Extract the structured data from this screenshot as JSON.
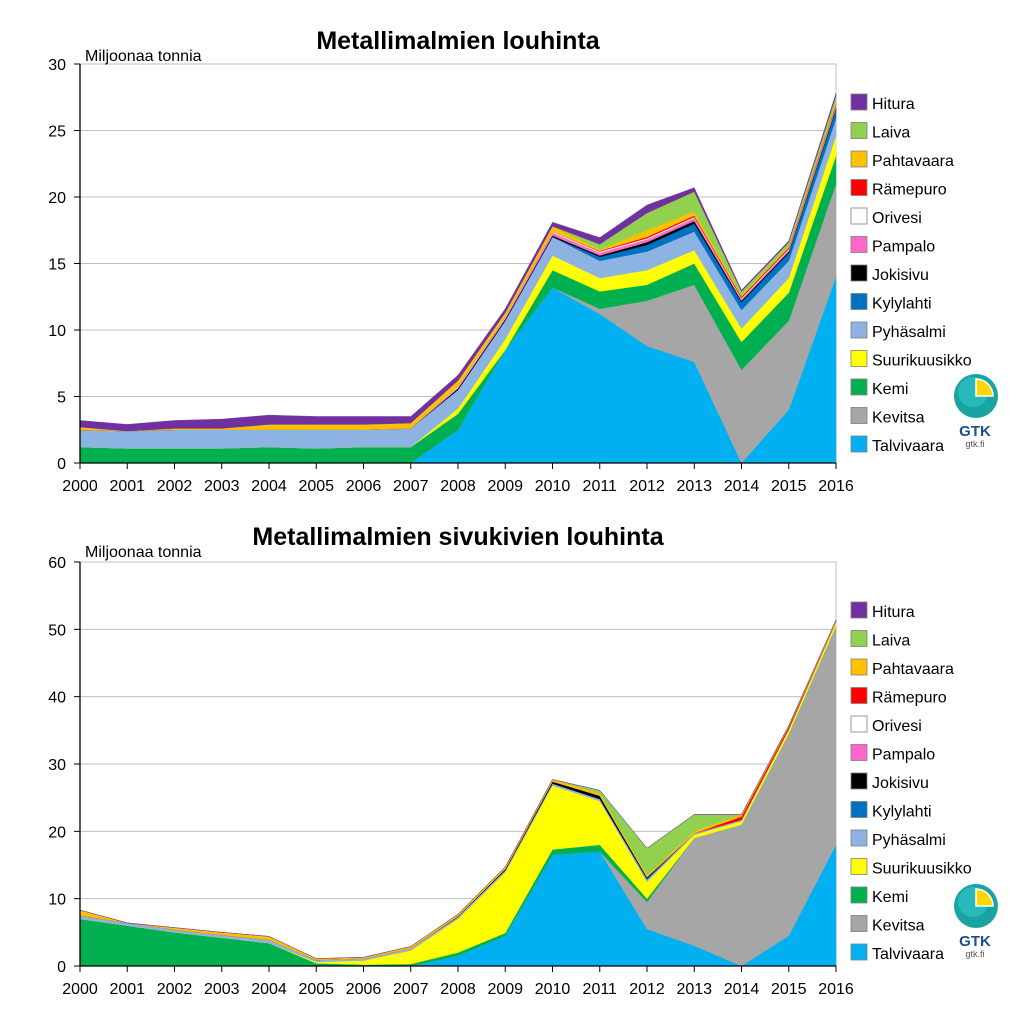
{
  "colors": {
    "Talvivaara": "#00b0f0",
    "Kevitsa": "#a6a6a6",
    "Kemi": "#00b050",
    "Suurikuusikko": "#ffff00",
    "Pyhäsalmi": "#8db3e2",
    "Kylylahti": "#0070c0",
    "Jokisivu": "#000000",
    "Pampalo": "#ff66cc",
    "Orivesi": "#ffffff",
    "Rämepuro": "#ff0000",
    "Pahtavaara": "#ffc000",
    "Laiva": "#92d050",
    "Hitura": "#7030a0"
  },
  "logo": {
    "text": "GTK",
    "url": "gtk.fi"
  },
  "chart_data": [
    {
      "type": "area",
      "stacked": true,
      "title": "Metallimalmien louhinta",
      "ylabel": "Miljoonaa tonnia",
      "xlabel": "",
      "ylim": [
        0,
        30
      ],
      "yticks": [
        0,
        5,
        10,
        15,
        20,
        25,
        30
      ],
      "grid": true,
      "legend_position": "right",
      "x": [
        "2000",
        "2001",
        "2002",
        "2003",
        "2004",
        "2005",
        "2006",
        "2007",
        "2008",
        "2009",
        "2010",
        "2011",
        "2012",
        "2013",
        "2014",
        "2015",
        "2016"
      ],
      "legend_order": [
        "Hitura",
        "Laiva",
        "Pahtavaara",
        "Rämepuro",
        "Orivesi",
        "Pampalo",
        "Jokisivu",
        "Kylylahti",
        "Pyhäsalmi",
        "Suurikuusikko",
        "Kemi",
        "Kevitsa",
        "Talvivaara"
      ],
      "series": [
        {
          "name": "Talvivaara",
          "values": [
            0,
            0,
            0,
            0,
            0,
            0,
            0,
            0,
            2.5,
            8.5,
            13.2,
            11.2,
            8.8,
            7.6,
            0,
            4.0,
            14.0
          ]
        },
        {
          "name": "Kevitsa",
          "values": [
            0,
            0,
            0,
            0,
            0,
            0,
            0,
            0,
            0,
            0,
            0,
            0.4,
            3.4,
            5.8,
            7.0,
            6.7,
            7.0
          ]
        },
        {
          "name": "Kemi",
          "values": [
            1.2,
            1.1,
            1.1,
            1.1,
            1.2,
            1.1,
            1.2,
            1.2,
            1.2,
            0,
            1.3,
            1.3,
            1.2,
            1.6,
            2.1,
            2.1,
            2.1
          ]
        },
        {
          "name": "Suurikuusikko",
          "values": [
            0,
            0,
            0,
            0,
            0,
            0,
            0,
            0,
            0.4,
            0.8,
            1.1,
            1.0,
            1.1,
            1.0,
            1.0,
            1.1,
            1.5
          ]
        },
        {
          "name": "Pyhäsalmi",
          "values": [
            1.3,
            1.3,
            1.4,
            1.4,
            1.3,
            1.4,
            1.3,
            1.4,
            1.4,
            1.4,
            1.4,
            1.3,
            1.4,
            1.4,
            1.4,
            1.3,
            1.3
          ]
        },
        {
          "name": "Kylylahti",
          "values": [
            0,
            0,
            0,
            0,
            0,
            0,
            0,
            0,
            0,
            0,
            0,
            0.3,
            0.5,
            0.6,
            0.6,
            0.6,
            0.7
          ]
        },
        {
          "name": "Jokisivu",
          "values": [
            0,
            0,
            0,
            0,
            0,
            0,
            0,
            0,
            0.1,
            0.1,
            0.1,
            0.1,
            0.2,
            0.2,
            0.1,
            0.1,
            0.1
          ]
        },
        {
          "name": "Pampalo",
          "values": [
            0,
            0,
            0,
            0,
            0,
            0,
            0,
            0,
            0.1,
            0.1,
            0.2,
            0.2,
            0.2,
            0.2,
            0.1,
            0.1,
            0.1
          ]
        },
        {
          "name": "Orivesi",
          "values": [
            0,
            0,
            0,
            0,
            0,
            0,
            0,
            0,
            0.1,
            0.1,
            0.1,
            0.1,
            0.1,
            0.1,
            0.1,
            0.1,
            0.1
          ]
        },
        {
          "name": "Rämepuro",
          "values": [
            0,
            0,
            0,
            0,
            0,
            0,
            0,
            0,
            0,
            0,
            0,
            0.05,
            0.1,
            0.1,
            0.1,
            0.1,
            0.1
          ]
        },
        {
          "name": "Pahtavaara",
          "values": [
            0.2,
            0,
            0.1,
            0.1,
            0.4,
            0.4,
            0.4,
            0.4,
            0.4,
            0.3,
            0.4,
            0.1,
            0.5,
            0.3,
            0.1,
            0.1,
            0.2
          ]
        },
        {
          "name": "Laiva",
          "values": [
            0,
            0,
            0,
            0,
            0,
            0,
            0,
            0,
            0,
            0,
            0,
            0.4,
            1.3,
            1.5,
            0.3,
            0.3,
            0.4
          ]
        },
        {
          "name": "Hitura",
          "values": [
            0.5,
            0.5,
            0.6,
            0.7,
            0.7,
            0.6,
            0.6,
            0.5,
            0.4,
            0.3,
            0.3,
            0.5,
            0.6,
            0.3,
            0.1,
            0.1,
            0.2
          ]
        }
      ]
    },
    {
      "type": "area",
      "stacked": true,
      "title": "Metallimalmien sivukivien louhinta",
      "ylabel": "Miljoonaa tonnia",
      "xlabel": "",
      "ylim": [
        0,
        60
      ],
      "yticks": [
        0,
        10,
        20,
        30,
        40,
        50,
        60
      ],
      "grid": true,
      "legend_position": "right",
      "x": [
        "2000",
        "2001",
        "2002",
        "2003",
        "2004",
        "2005",
        "2006",
        "2007",
        "2008",
        "2009",
        "2010",
        "2011",
        "2012",
        "2013",
        "2014",
        "2015",
        "2016"
      ],
      "legend_order": [
        "Hitura",
        "Laiva",
        "Pahtavaara",
        "Rämepuro",
        "Orivesi",
        "Pampalo",
        "Jokisivu",
        "Kylylahti",
        "Pyhäsalmi",
        "Suurikuusikko",
        "Kemi",
        "Kevitsa",
        "Talvivaara"
      ],
      "series": [
        {
          "name": "Talvivaara",
          "values": [
            0,
            0,
            0,
            0,
            0,
            0,
            0,
            0,
            1.5,
            4.5,
            16.5,
            17.0,
            5.5,
            3.0,
            0,
            4.5,
            18.0
          ]
        },
        {
          "name": "Kevitsa",
          "values": [
            0,
            0,
            0,
            0,
            0,
            0,
            0,
            0,
            0,
            0,
            0,
            0,
            4.0,
            16.0,
            21.0,
            30.0,
            32.5
          ]
        },
        {
          "name": "Kemi",
          "values": [
            7.0,
            6.0,
            5.0,
            4.2,
            3.4,
            0.4,
            0.2,
            0.3,
            0.5,
            0.4,
            0.8,
            1.0,
            0.5,
            0,
            0,
            0,
            0
          ]
        },
        {
          "name": "Suurikuusikko",
          "values": [
            0,
            0,
            0,
            0,
            0,
            0.2,
            0.6,
            2.0,
            5.0,
            9.0,
            9.5,
            6.5,
            2.5,
            0.5,
            0.5,
            0.5,
            0.5
          ]
        },
        {
          "name": "Pyhäsalmi",
          "values": [
            0.5,
            0.4,
            0.4,
            0.4,
            0.5,
            0.3,
            0.3,
            0.3,
            0.3,
            0.3,
            0.3,
            0.3,
            0.3,
            0.2,
            0.2,
            0.2,
            0.2
          ]
        },
        {
          "name": "Kylylahti",
          "values": [
            0,
            0,
            0,
            0,
            0,
            0,
            0,
            0,
            0,
            0,
            0,
            0,
            0.2,
            0,
            0,
            0,
            0
          ]
        },
        {
          "name": "Jokisivu",
          "values": [
            0,
            0,
            0,
            0,
            0,
            0,
            0,
            0,
            0.1,
            0.2,
            0.3,
            0.5,
            0.2,
            0,
            0,
            0,
            0
          ]
        },
        {
          "name": "Pampalo",
          "values": [
            0,
            0,
            0,
            0,
            0,
            0,
            0,
            0,
            0,
            0,
            0,
            0,
            0,
            0,
            0,
            0,
            0
          ]
        },
        {
          "name": "Orivesi",
          "values": [
            0,
            0,
            0,
            0,
            0,
            0,
            0,
            0,
            0,
            0,
            0,
            0,
            0,
            0,
            0,
            0,
            0
          ]
        },
        {
          "name": "Rämepuro",
          "values": [
            0,
            0,
            0,
            0,
            0,
            0,
            0,
            0,
            0,
            0,
            0,
            0,
            0,
            0,
            0.5,
            0.3,
            0
          ]
        },
        {
          "name": "Pahtavaara",
          "values": [
            0.8,
            0,
            0.3,
            0.4,
            0.5,
            0.2,
            0.2,
            0.3,
            0.3,
            0.3,
            0.3,
            0.3,
            0.3,
            0.3,
            0.3,
            0.2,
            0.2
          ]
        },
        {
          "name": "Laiva",
          "values": [
            0,
            0,
            0,
            0,
            0,
            0,
            0,
            0,
            0,
            0,
            0,
            0.5,
            4.0,
            2.5,
            0,
            0,
            0
          ]
        },
        {
          "name": "Hitura",
          "values": [
            0,
            0,
            0,
            0,
            0,
            0,
            0,
            0,
            0,
            0,
            0,
            0,
            0,
            0,
            0,
            0,
            0
          ]
        }
      ]
    }
  ]
}
